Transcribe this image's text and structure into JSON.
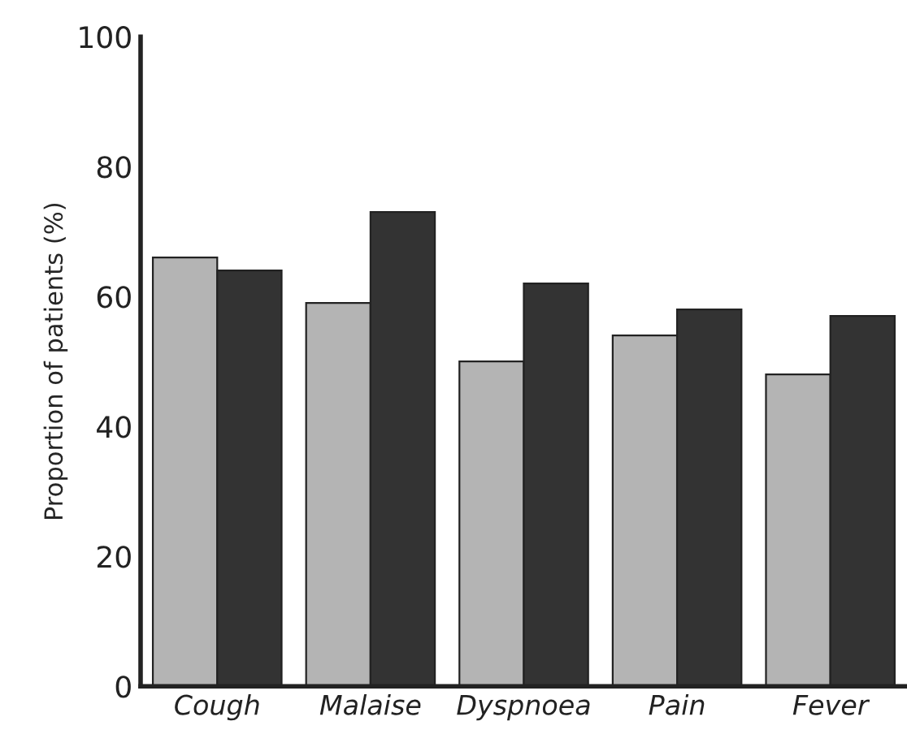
{
  "chart_data": {
    "type": "bar",
    "ylabel": "Proportion of patients (%)",
    "categories": [
      "Cough",
      "Malaise",
      "Dyspnoea",
      "Pain",
      "Fever"
    ],
    "series": [
      {
        "color": "#b4b4b4",
        "values": [
          66,
          59,
          50,
          54,
          48
        ]
      },
      {
        "color": "#333333",
        "values": [
          64,
          73,
          62,
          58,
          57
        ]
      }
    ],
    "ylim": [
      0,
      100
    ],
    "yticks": [
      0,
      20,
      40,
      60,
      80,
      100
    ],
    "grid": false,
    "legend": false
  }
}
